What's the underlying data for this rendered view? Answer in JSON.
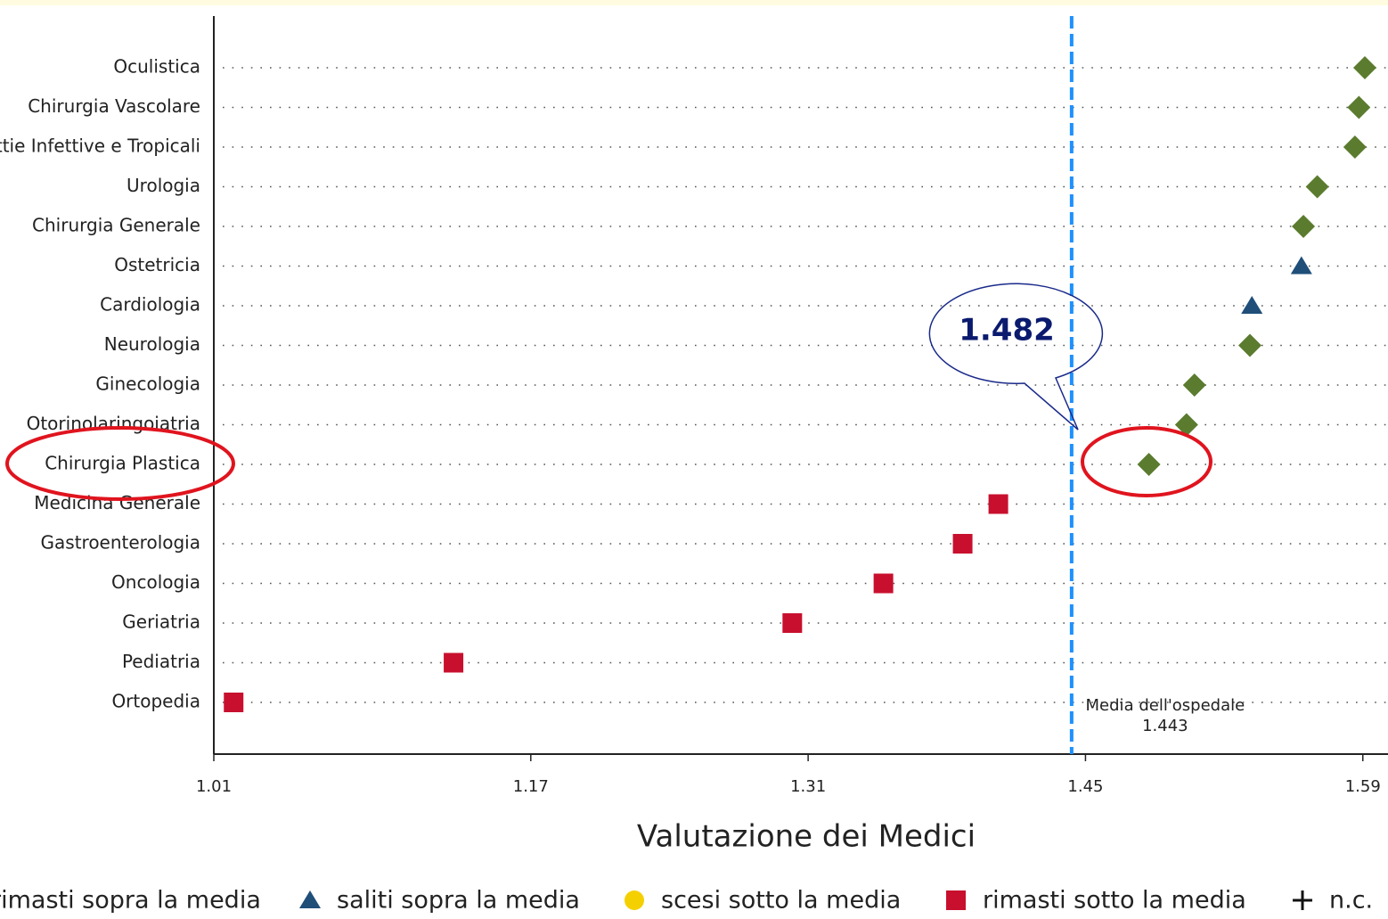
{
  "chart_data": {
    "type": "dot",
    "xlabel": "Valutazione dei Medici",
    "categories": [
      "Oculistica",
      "Chirurgia Vascolare",
      "Malattie Infettive e Tropicali",
      "Urologia",
      "Chirurgia Generale",
      "Ostetricia",
      "Cardiologia",
      "Neurologia",
      "Ginecologia",
      "Otorinolaringoiatria",
      "Chirurgia Plastica",
      "Medicina Generale",
      "Gastroenterologia",
      "Oncologia",
      "Geriatria",
      "Pediatria",
      "Ortopedia"
    ],
    "series": [
      {
        "name": "rimasti sopra la media",
        "color": "#5b7c2f",
        "marker": "diamond",
        "values": [
          1.591,
          1.588,
          1.586,
          1.567,
          1.56,
          null,
          null,
          1.533,
          1.505,
          1.501,
          1.482,
          null,
          null,
          null,
          null,
          null,
          null
        ]
      },
      {
        "name": "saliti sopra la media",
        "color": "#1f4e79",
        "marker": "triangle",
        "values": [
          null,
          null,
          null,
          null,
          null,
          1.559,
          1.534,
          null,
          null,
          null,
          null,
          null,
          null,
          null,
          null,
          null,
          null
        ]
      },
      {
        "name": "scesi sotto la media",
        "color": "#f5d000",
        "marker": "circle",
        "values": [
          null,
          null,
          null,
          null,
          null,
          null,
          null,
          null,
          null,
          null,
          null,
          null,
          null,
          null,
          null,
          null,
          null
        ]
      },
      {
        "name": "rimasti sotto la media",
        "color": "#c8102e",
        "marker": "square",
        "values": [
          null,
          null,
          null,
          null,
          null,
          null,
          null,
          null,
          null,
          null,
          null,
          1.406,
          1.388,
          1.348,
          1.302,
          1.131,
          1.02
        ]
      },
      {
        "name": "n.c.",
        "color": "#111111",
        "marker": "plus",
        "values": [
          null,
          null,
          null,
          null,
          null,
          null,
          null,
          null,
          null,
          null,
          null,
          null,
          null,
          null,
          null,
          null,
          null
        ]
      }
    ],
    "xlim": [
      1.01,
      1.6
    ],
    "xticks": [
      1.01,
      1.17,
      1.31,
      1.45,
      1.59
    ],
    "mean_line": {
      "label": "Media dell'ospedale",
      "value": 1.443,
      "color": "#1e90ff"
    },
    "callout": {
      "value": 1.482,
      "color": "#0a1a6e"
    }
  }
}
